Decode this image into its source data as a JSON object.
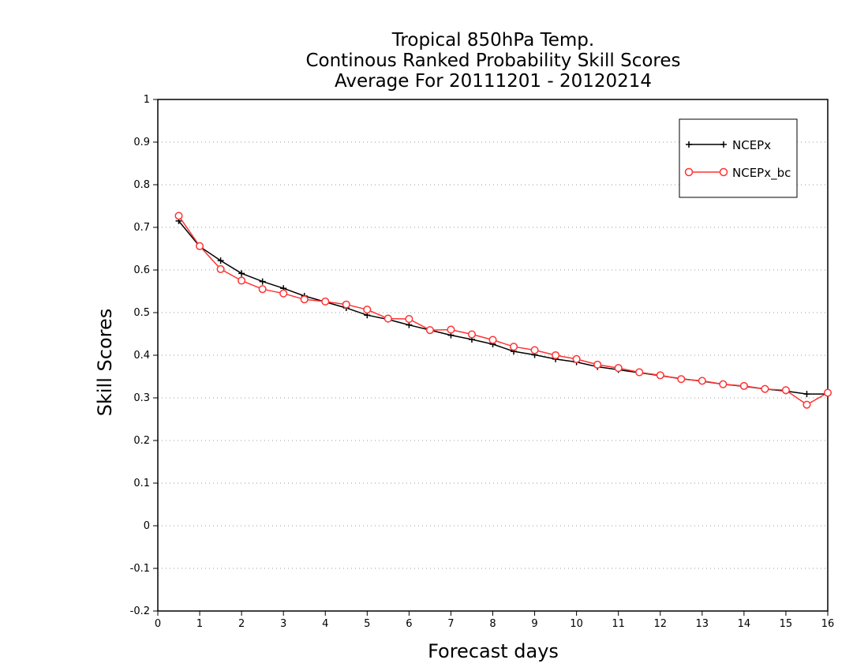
{
  "chart_data": {
    "type": "line",
    "title": [
      "Tropical 850hPa Temp.",
      "Continous Ranked Probability Skill Scores",
      "Average For 20111201 - 20120214"
    ],
    "xlabel": "Forecast days",
    "ylabel": "Skill Scores",
    "xlim": [
      0,
      16
    ],
    "ylim": [
      -0.2,
      1
    ],
    "xticks": [
      0,
      1,
      2,
      3,
      4,
      5,
      6,
      7,
      8,
      9,
      10,
      11,
      12,
      13,
      14,
      15,
      16
    ],
    "yticks": [
      -0.2,
      -0.1,
      0,
      0.1,
      0.2,
      0.3,
      0.4,
      0.5,
      0.6,
      0.7,
      0.8,
      0.9,
      1
    ],
    "ytick_labels": [
      "-0.2",
      "-0.1",
      "0",
      "0.1",
      "0.2",
      "0.3",
      "0.4",
      "0.5",
      "0.6",
      "0.7",
      "0.8",
      "0.9",
      "1"
    ],
    "grid": "horizontal dotted",
    "legend_position": "top-right",
    "x": [
      0.5,
      1,
      1.5,
      2,
      2.5,
      3,
      3.5,
      4,
      4.5,
      5,
      5.5,
      6,
      6.5,
      7,
      7.5,
      8,
      8.5,
      9,
      9.5,
      10,
      10.5,
      11,
      11.5,
      12,
      12.5,
      13,
      13.5,
      14,
      14.5,
      15,
      15.5,
      16
    ],
    "series": [
      {
        "name": "NCEPx",
        "color": "#000000",
        "marker": "plus",
        "values": [
          0.715,
          0.655,
          0.622,
          0.592,
          0.573,
          0.557,
          0.539,
          0.525,
          0.511,
          0.494,
          0.484,
          0.471,
          0.459,
          0.447,
          0.437,
          0.426,
          0.409,
          0.401,
          0.391,
          0.384,
          0.373,
          0.366,
          0.359,
          0.352,
          0.345,
          0.339,
          0.332,
          0.327,
          0.321,
          0.316,
          0.309,
          0.309
        ]
      },
      {
        "name": "NCEPx_bc",
        "color": "#ff3333",
        "marker": "circle",
        "values": [
          0.727,
          0.656,
          0.602,
          0.575,
          0.555,
          0.545,
          0.531,
          0.526,
          0.519,
          0.507,
          0.486,
          0.485,
          0.459,
          0.46,
          0.449,
          0.436,
          0.42,
          0.412,
          0.4,
          0.391,
          0.378,
          0.37,
          0.36,
          0.353,
          0.344,
          0.34,
          0.332,
          0.328,
          0.321,
          0.318,
          0.284,
          0.312
        ]
      }
    ]
  }
}
